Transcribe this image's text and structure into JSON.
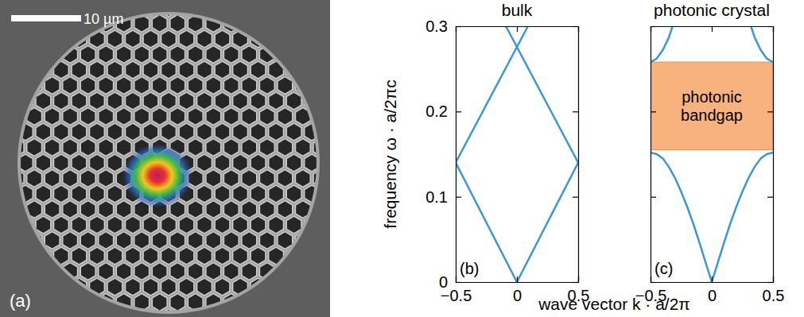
{
  "figure": {
    "ylabel": "frequency ω · a/2πc",
    "xlabel": "wave vector k · a/2π"
  },
  "image": {
    "scale_bar": "10 µm",
    "panel_label": "(a)"
  },
  "chart_data": [
    {
      "type": "line",
      "title": "bulk",
      "panel_label": "(b)",
      "xlim": [
        -0.5,
        0.5
      ],
      "ylim": [
        0,
        0.3
      ],
      "xticks": [
        {
          "value": -0.5,
          "label": "−0.5"
        },
        0,
        0.5
      ],
      "yticks": [
        0,
        0.1,
        0.2,
        0.3
      ],
      "tick_labels": true,
      "series": [
        {
          "color": "#3b97d6",
          "x": [
            -0.5,
            0,
            0.5
          ],
          "values": [
            0.14,
            0,
            0.14
          ]
        },
        {
          "color": "#3b97d6",
          "x": [
            -0.5,
            0.09
          ],
          "values": [
            0.14,
            0.3
          ]
        },
        {
          "color": "#3b97d6",
          "x": [
            -0.09,
            0.5
          ],
          "values": [
            0.3,
            0.14
          ]
        }
      ]
    },
    {
      "type": "line",
      "title": "photonic crystal",
      "panel_label": "(c)",
      "xlim": [
        -0.5,
        0.5
      ],
      "ylim": [
        0,
        0.3
      ],
      "xticks": [
        {
          "value": -0.5,
          "label": "−0.5"
        },
        0,
        0.5
      ],
      "yticks": [
        0,
        0.1,
        0.2,
        0.3
      ],
      "tick_labels": "x",
      "band_gap": {
        "label": [
          "photonic",
          "bandgap"
        ],
        "range": [
          0.155,
          0.258
        ],
        "color": "#f7b27e"
      },
      "series": [
        {
          "color": "#3b97d6",
          "x": [
            -0.5,
            -0.45,
            -0.4,
            -0.35,
            -0.3,
            -0.25,
            -0.2,
            -0.15,
            -0.1,
            -0.05,
            0,
            0.05,
            0.1,
            0.15,
            0.2,
            0.25,
            0.3,
            0.35,
            0.4,
            0.45,
            0.5
          ],
          "values": [
            0.152,
            0.15,
            0.145,
            0.135,
            0.122,
            0.106,
            0.088,
            0.068,
            0.046,
            0.023,
            0,
            0.023,
            0.046,
            0.068,
            0.088,
            0.106,
            0.122,
            0.135,
            0.145,
            0.15,
            0.152
          ]
        },
        {
          "color": "#3b97d6",
          "x": [
            -0.5,
            -0.45,
            -0.4,
            -0.35,
            -0.32
          ],
          "values": [
            0.258,
            0.262,
            0.272,
            0.287,
            0.3
          ]
        },
        {
          "color": "#3b97d6",
          "x": [
            0.32,
            0.35,
            0.4,
            0.45,
            0.5
          ],
          "values": [
            0.3,
            0.287,
            0.272,
            0.262,
            0.258
          ]
        }
      ]
    }
  ]
}
